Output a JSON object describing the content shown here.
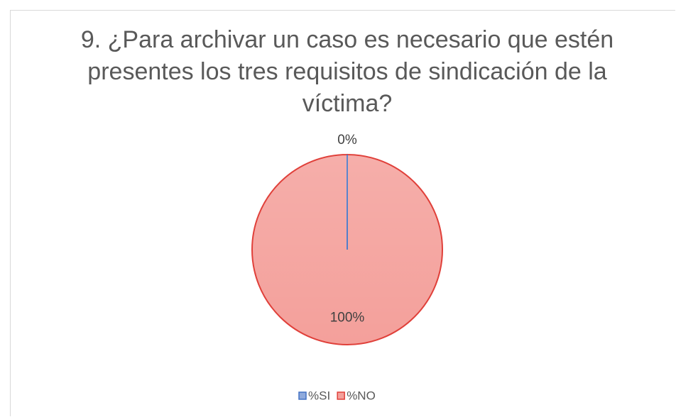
{
  "chart_data": {
    "type": "pie",
    "title": "9. ¿Para archivar un caso es necesario que estén presentes los tres requisitos de sindicación de la víctima?",
    "categories": [
      "%SI",
      "%NO"
    ],
    "values": [
      0,
      100
    ],
    "value_labels": [
      "0%",
      "100%"
    ],
    "colors": [
      "#8faadc",
      "#f4a09b"
    ],
    "edge_colors": [
      "#4472c4",
      "#e0403a"
    ],
    "legend": "bottom"
  }
}
